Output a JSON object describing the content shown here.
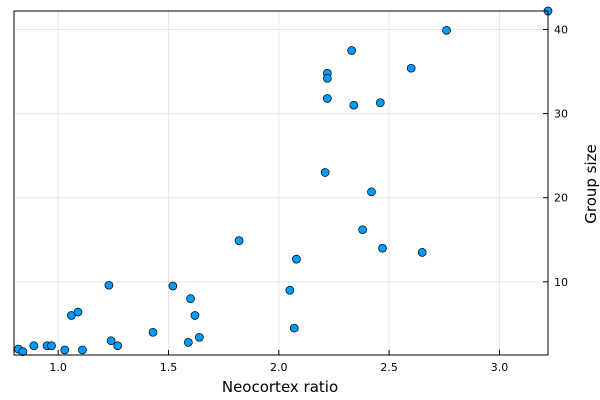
{
  "chart_data": {
    "type": "scatter",
    "xlabel": "Neocortex ratio",
    "ylabel": "Group size",
    "xlim": [
      0.8,
      3.22
    ],
    "ylim": [
      1.3,
      42.2
    ],
    "x_ticks": [
      1.0,
      1.5,
      2.0,
      2.5,
      3.0
    ],
    "x_tick_labels": [
      "1.0",
      "1.5",
      "2.0",
      "2.5",
      "3.0"
    ],
    "y_ticks": [
      10,
      20,
      30,
      40
    ],
    "y_tick_labels": [
      "10",
      "20",
      "30",
      "40"
    ],
    "y_axis_side": "right",
    "grid": true,
    "legend": "none",
    "point_color": "#009AFA",
    "series": [
      {
        "points": [
          [
            0.82,
            2.0
          ],
          [
            0.84,
            1.7
          ],
          [
            0.89,
            2.4
          ],
          [
            0.95,
            2.4
          ],
          [
            0.97,
            2.4
          ],
          [
            1.03,
            1.9
          ],
          [
            1.06,
            6.0
          ],
          [
            1.09,
            6.4
          ],
          [
            1.11,
            1.9
          ],
          [
            1.23,
            9.6
          ],
          [
            1.24,
            3.0
          ],
          [
            1.27,
            2.4
          ],
          [
            1.43,
            4.0
          ],
          [
            1.52,
            9.5
          ],
          [
            1.59,
            2.8
          ],
          [
            1.6,
            8.0
          ],
          [
            1.62,
            6.0
          ],
          [
            1.64,
            3.4
          ],
          [
            1.82,
            14.9
          ],
          [
            2.05,
            9.0
          ],
          [
            2.07,
            4.5
          ],
          [
            2.08,
            12.7
          ],
          [
            2.21,
            23.0
          ],
          [
            2.22,
            34.8
          ],
          [
            2.22,
            34.2
          ],
          [
            2.22,
            31.8
          ],
          [
            2.33,
            37.5
          ],
          [
            2.34,
            31.0
          ],
          [
            2.38,
            16.2
          ],
          [
            2.42,
            20.7
          ],
          [
            2.46,
            31.3
          ],
          [
            2.47,
            14.0
          ],
          [
            2.6,
            35.4
          ],
          [
            2.65,
            13.5
          ],
          [
            2.76,
            39.9
          ],
          [
            3.22,
            42.2
          ]
        ]
      }
    ]
  }
}
